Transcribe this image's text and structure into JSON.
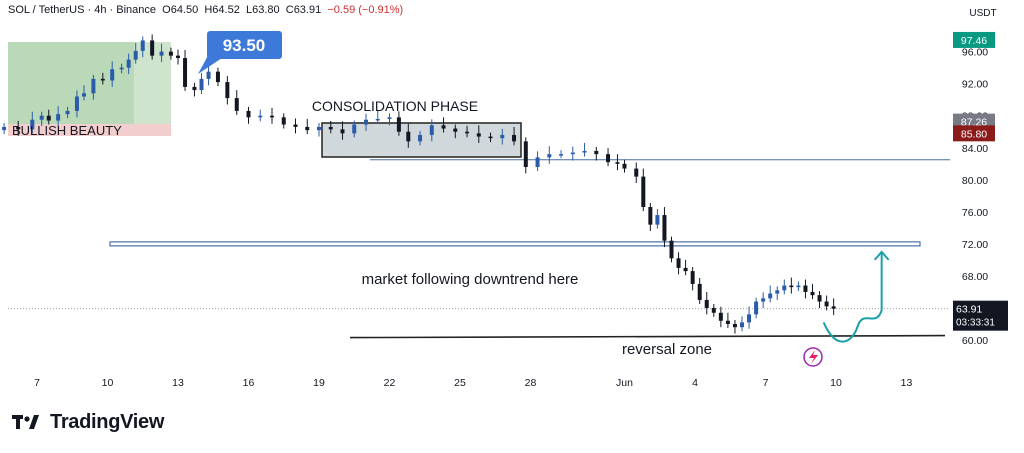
{
  "header": {
    "symbol": "SOL / TetherUS",
    "interval": "4h",
    "exchange": "Binance",
    "open": "O64.50",
    "high": "H64.52",
    "low": "L63.80",
    "close": "C63.91",
    "change": "−0.59 (−0.91%)"
  },
  "axis": {
    "currency": "USDT",
    "price_ticks": [
      "96.00",
      "92.00",
      "88.00",
      "84.00",
      "80.00",
      "76.00",
      "72.00",
      "68.00",
      "64.00",
      "60.00"
    ],
    "date_ticks": [
      "7",
      "10",
      "13",
      "16",
      "19",
      "22",
      "25",
      "28",
      "Jun",
      "4",
      "7",
      "10",
      "13"
    ]
  },
  "price_tags": {
    "top": {
      "value": "97.46",
      "color": "#089981"
    },
    "gray": {
      "value": "87.26",
      "color": "#787b86"
    },
    "red": {
      "value": "85.80",
      "color": "#8b1a1a"
    },
    "last": {
      "value": "63.91",
      "countdown": "03:33:31",
      "color": "#131722"
    }
  },
  "annotations": {
    "bullish": "BULLISH BEAUTY",
    "peak": "93.50",
    "consolidation": "CONSOLIDATION PHASE",
    "downtrend": "market following downtrend here",
    "reversal": "reversal zone"
  },
  "levels": {
    "support_low": 60.3,
    "resistance_mid": 72.0,
    "resistance_high": 82.5
  },
  "footer": {
    "brand": "TradingView"
  },
  "chart_data": {
    "type": "line",
    "x_unit": "days (May 7 – Jun 10)",
    "x_range": [
      5.6,
      41
    ],
    "ylim": [
      58.5,
      99
    ],
    "series": [
      {
        "values": [
          [
            5.6,
            86.6
          ],
          [
            6.2,
            86.3
          ],
          [
            6.8,
            87.5
          ],
          [
            7.2,
            88.0
          ],
          [
            7.5,
            87.4
          ],
          [
            7.9,
            88.2
          ],
          [
            8.3,
            88.6
          ],
          [
            8.7,
            90.4
          ],
          [
            9.0,
            90.8
          ],
          [
            9.4,
            92.6
          ],
          [
            9.8,
            92.4
          ],
          [
            10.2,
            93.8
          ],
          [
            10.6,
            94.0
          ],
          [
            10.9,
            95.0
          ],
          [
            11.2,
            96.1
          ],
          [
            11.5,
            97.4
          ],
          [
            11.9,
            95.5
          ],
          [
            12.3,
            96.0
          ],
          [
            12.7,
            95.5
          ],
          [
            13.0,
            95.2
          ],
          [
            13.3,
            91.6
          ],
          [
            13.7,
            91.2
          ],
          [
            14.0,
            92.6
          ],
          [
            14.3,
            93.5
          ],
          [
            14.7,
            92.2
          ],
          [
            15.1,
            90.2
          ],
          [
            15.5,
            88.6
          ],
          [
            16.0,
            87.8
          ],
          [
            16.5,
            88.0
          ],
          [
            17.0,
            87.8
          ],
          [
            17.5,
            86.9
          ],
          [
            18.0,
            86.6
          ],
          [
            18.5,
            86.2
          ],
          [
            19.0,
            86.6
          ],
          [
            19.5,
            86.3
          ],
          [
            20.0,
            85.8
          ],
          [
            20.5,
            86.9
          ],
          [
            21.0,
            87.5
          ],
          [
            21.5,
            87.6
          ],
          [
            22.0,
            87.8
          ],
          [
            22.4,
            86.0
          ],
          [
            22.8,
            84.8
          ],
          [
            23.3,
            85.6
          ],
          [
            23.8,
            86.8
          ],
          [
            24.3,
            86.4
          ],
          [
            24.8,
            86.0
          ],
          [
            25.3,
            85.8
          ],
          [
            25.8,
            85.4
          ],
          [
            26.3,
            85.2
          ],
          [
            26.8,
            85.6
          ],
          [
            27.3,
            84.8
          ],
          [
            27.8,
            81.6
          ],
          [
            28.3,
            82.8
          ],
          [
            28.8,
            83.2
          ],
          [
            29.3,
            83.2
          ],
          [
            29.8,
            83.4
          ],
          [
            30.3,
            83.6
          ],
          [
            30.8,
            83.2
          ],
          [
            31.3,
            82.2
          ],
          [
            31.7,
            82.0
          ],
          [
            32.0,
            81.4
          ],
          [
            32.5,
            80.4
          ],
          [
            32.8,
            76.6
          ],
          [
            33.1,
            74.4
          ],
          [
            33.4,
            75.6
          ],
          [
            33.7,
            72.4
          ],
          [
            34.0,
            70.2
          ],
          [
            34.3,
            69.0
          ],
          [
            34.6,
            68.6
          ],
          [
            34.9,
            67.0
          ],
          [
            35.2,
            65.0
          ],
          [
            35.5,
            64.0
          ],
          [
            35.8,
            63.4
          ],
          [
            36.1,
            62.4
          ],
          [
            36.4,
            62.0
          ],
          [
            36.7,
            61.6
          ],
          [
            37.0,
            62.2
          ],
          [
            37.3,
            63.2
          ],
          [
            37.6,
            64.8
          ],
          [
            37.9,
            65.2
          ],
          [
            38.2,
            65.8
          ],
          [
            38.5,
            66.2
          ],
          [
            38.8,
            66.8
          ],
          [
            39.1,
            66.6
          ],
          [
            39.4,
            66.8
          ],
          [
            39.7,
            66.0
          ],
          [
            40.0,
            65.6
          ],
          [
            40.3,
            64.8
          ],
          [
            40.6,
            64.2
          ],
          [
            40.9,
            63.91
          ]
        ]
      }
    ]
  }
}
